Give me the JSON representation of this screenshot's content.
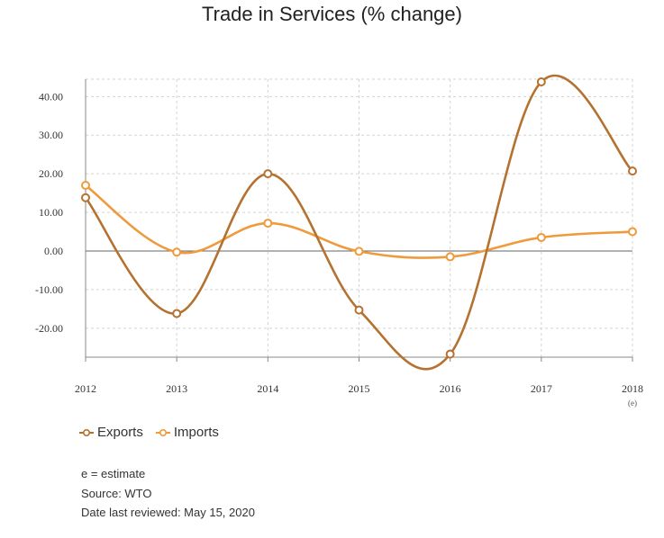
{
  "chart_data": {
    "type": "line",
    "title": "Trade in Services (% change)",
    "categories": [
      "2012",
      "2013",
      "2014",
      "2015",
      "2016",
      "2017",
      "2018"
    ],
    "category_notes": [
      "",
      "",
      "",
      "",
      "",
      "",
      "(e)"
    ],
    "series": [
      {
        "name": "Exports",
        "color": "#b5712f",
        "values": [
          13.8,
          -16.2,
          20.0,
          -15.3,
          -26.7,
          43.8,
          20.7
        ]
      },
      {
        "name": "Imports",
        "color": "#ef9a3c",
        "values": [
          17.0,
          -0.3,
          7.2,
          -0.1,
          -1.5,
          3.5,
          5.0
        ]
      }
    ],
    "yticks": [
      "40.00",
      "30.00",
      "20.00",
      "10.00",
      "0.00",
      "-10.00",
      "-20.00"
    ],
    "ytick_values": [
      40,
      30,
      20,
      10,
      0,
      -10,
      -20
    ],
    "ylim": [
      -27.5,
      44.5
    ],
    "grid": true,
    "legend": "bottom-left",
    "xlabel": "",
    "ylabel": ""
  },
  "notes": {
    "estimate": "e = estimate",
    "source": "Source: WTO",
    "reviewed": "Date last reviewed: May 15, 2020"
  }
}
